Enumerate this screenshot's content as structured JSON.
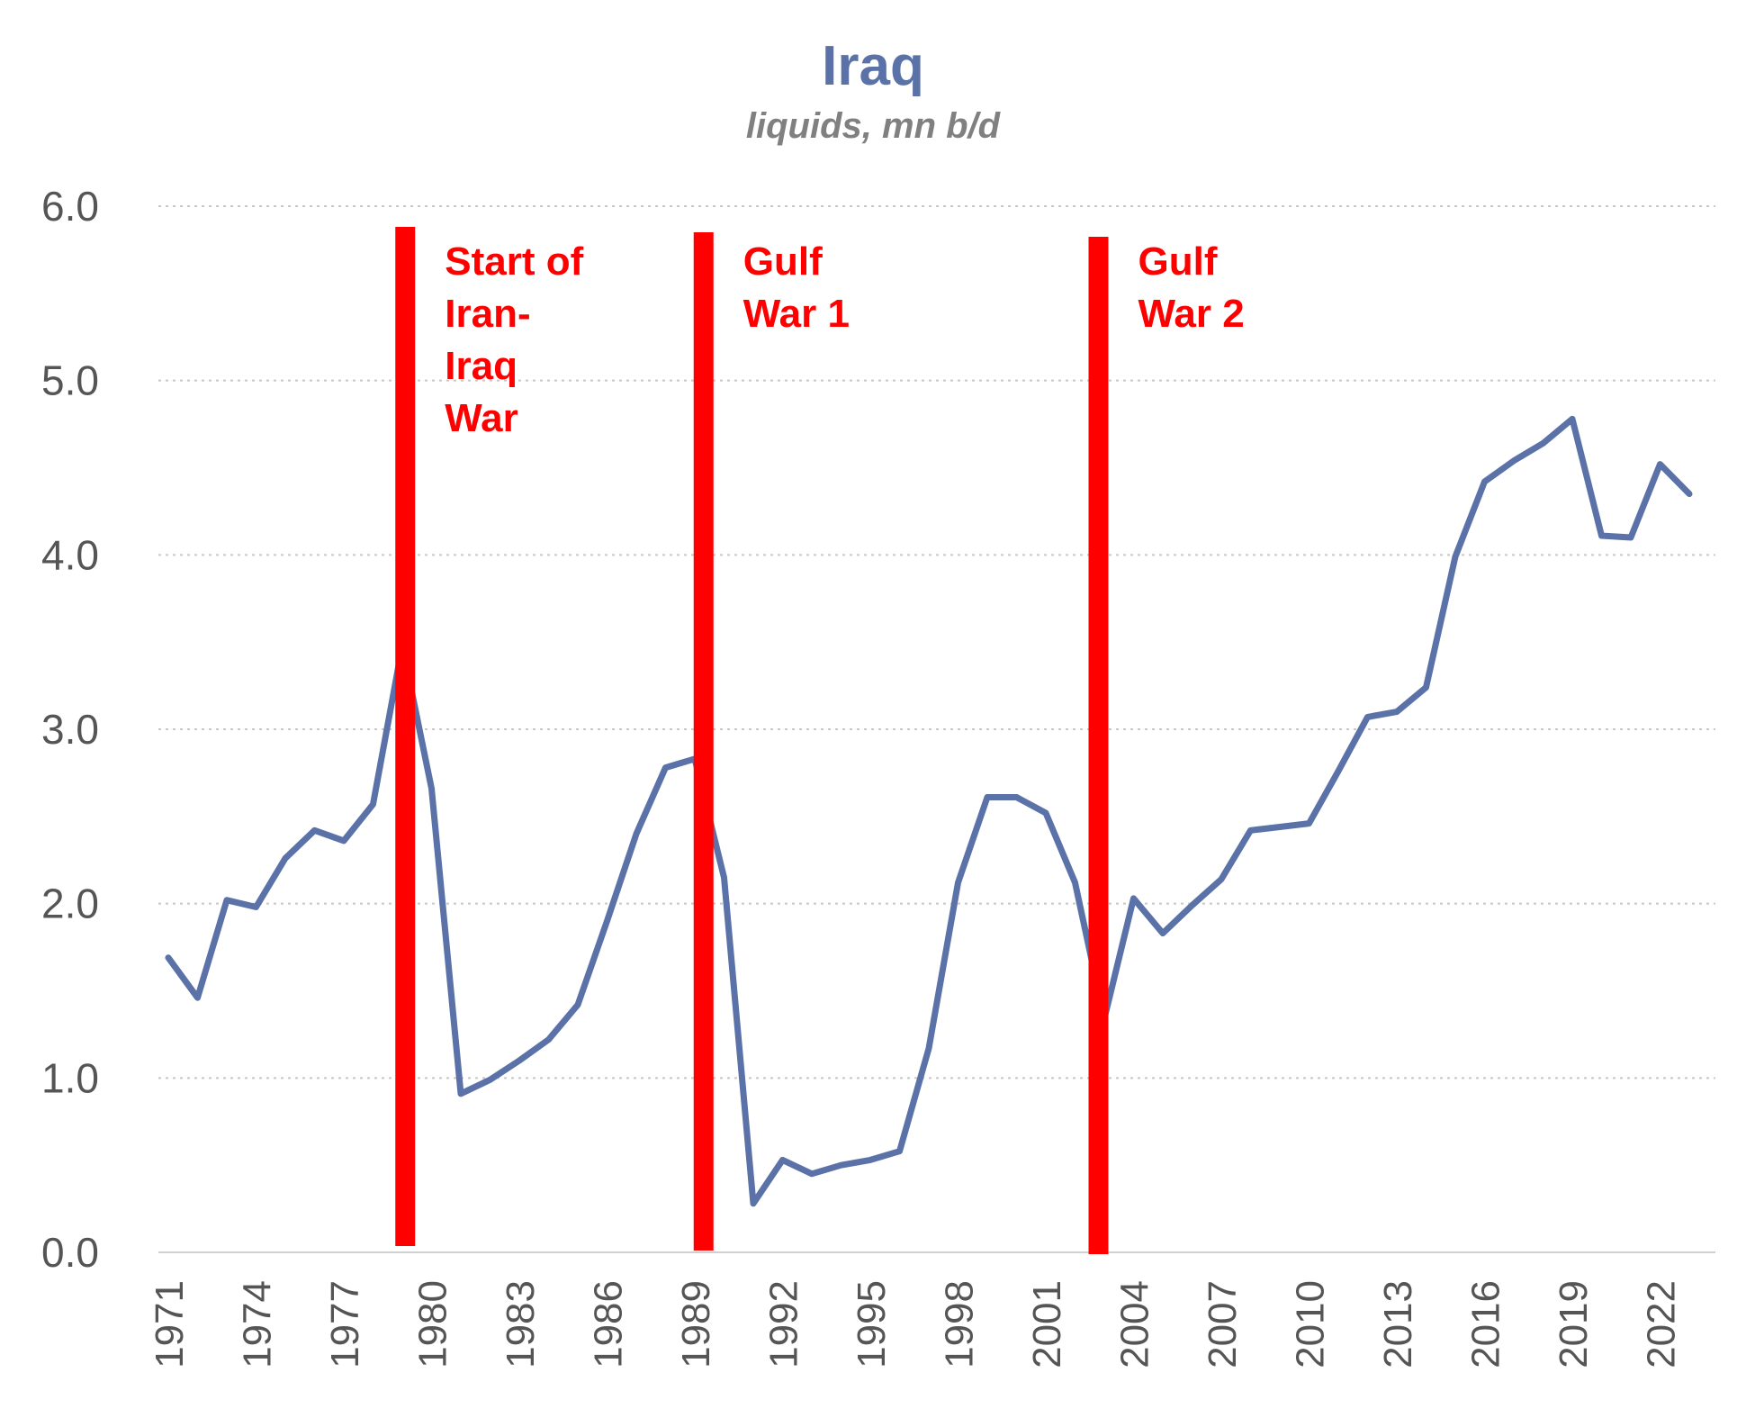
{
  "chart_data": {
    "type": "line",
    "title": "Iraq",
    "subtitle": "liquids, mn b/d",
    "xlabel": "",
    "ylabel": "",
    "ylim": [
      0,
      6
    ],
    "yticks": [
      "0.0",
      "1.0",
      "2.0",
      "3.0",
      "4.0",
      "5.0",
      "6.0"
    ],
    "xticks": [
      "1971",
      "1974",
      "1977",
      "1980",
      "1983",
      "1986",
      "1989",
      "1992",
      "1995",
      "1998",
      "2001",
      "2004",
      "2007",
      "2010",
      "2013",
      "2016",
      "2019",
      "2022"
    ],
    "grid": "horizontal dotted",
    "x": [
      1971,
      1972,
      1973,
      1974,
      1975,
      1976,
      1977,
      1978,
      1979,
      1980,
      1981,
      1982,
      1983,
      1984,
      1985,
      1986,
      1987,
      1988,
      1989,
      1990,
      1991,
      1992,
      1993,
      1994,
      1995,
      1996,
      1997,
      1998,
      1999,
      2000,
      2001,
      2002,
      2003,
      2004,
      2005,
      2006,
      2007,
      2008,
      2009,
      2010,
      2011,
      2012,
      2013,
      2014,
      2015,
      2016,
      2017,
      2018,
      2019,
      2020,
      2021,
      2022,
      2023
    ],
    "series": [
      {
        "color": "#5b72a8",
        "values": [
          1.69,
          1.46,
          2.02,
          1.98,
          2.26,
          2.42,
          2.36,
          2.57,
          3.48,
          2.66,
          0.91,
          0.99,
          1.1,
          1.22,
          1.42,
          1.9,
          2.4,
          2.78,
          2.83,
          2.15,
          0.28,
          0.53,
          0.45,
          0.5,
          0.53,
          0.58,
          1.17,
          2.12,
          2.61,
          2.61,
          2.52,
          2.12,
          1.34,
          2.03,
          1.83,
          1.99,
          2.14,
          2.42,
          2.44,
          2.46,
          2.76,
          3.07,
          3.1,
          3.24,
          3.99,
          4.42,
          4.54,
          4.64,
          4.78,
          4.11,
          4.1,
          4.52,
          4.35
        ]
      }
    ],
    "annotations": [
      {
        "x": 1979.1,
        "color": "#ff0000",
        "lines": [
          "Start of",
          "Iran-",
          "Iraq",
          "War"
        ]
      },
      {
        "x": 1989.3,
        "color": "#ff0000",
        "lines": [
          "Gulf",
          "War 1"
        ]
      },
      {
        "x": 2002.8,
        "color": "#ff0000",
        "lines": [
          "Gulf",
          "War 2"
        ]
      }
    ]
  }
}
